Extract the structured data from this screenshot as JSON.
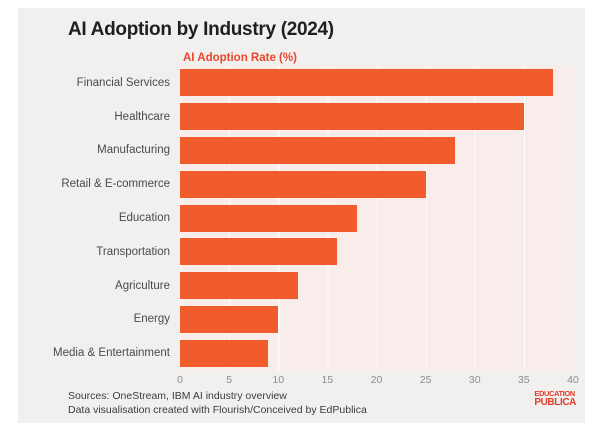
{
  "header": {
    "title": "AI Adoption by Industry (2024)",
    "subtitle": "AI Adoption Rate (%)"
  },
  "chart_data": {
    "type": "bar",
    "orientation": "horizontal",
    "title": "AI Adoption by Industry (2024)",
    "xlabel": "AI Adoption Rate (%)",
    "categories": [
      "Financial Services",
      "Healthcare",
      "Manufacturing",
      "Retail & E-commerce",
      "Education",
      "Transportation",
      "Agriculture",
      "Energy",
      "Media & Entertainment"
    ],
    "values": [
      38,
      35,
      28,
      25,
      18,
      16,
      12,
      10,
      9
    ],
    "xlim": [
      0,
      40
    ],
    "xticks": [
      0,
      5,
      10,
      15,
      20,
      25,
      30,
      35,
      40
    ],
    "grid": true,
    "legend": "none",
    "bar_color": "#f15c2d",
    "plot_bg": "#f8edea"
  },
  "footer": {
    "line1": "Sources: OneStream, IBM AI industry overview",
    "line2": "Data visualisation created with Flourish/Conceived by EdPublica"
  },
  "logo": {
    "line1": "EDUCATION",
    "line2": "PUBLICA",
    "color": "#e23b2c"
  }
}
